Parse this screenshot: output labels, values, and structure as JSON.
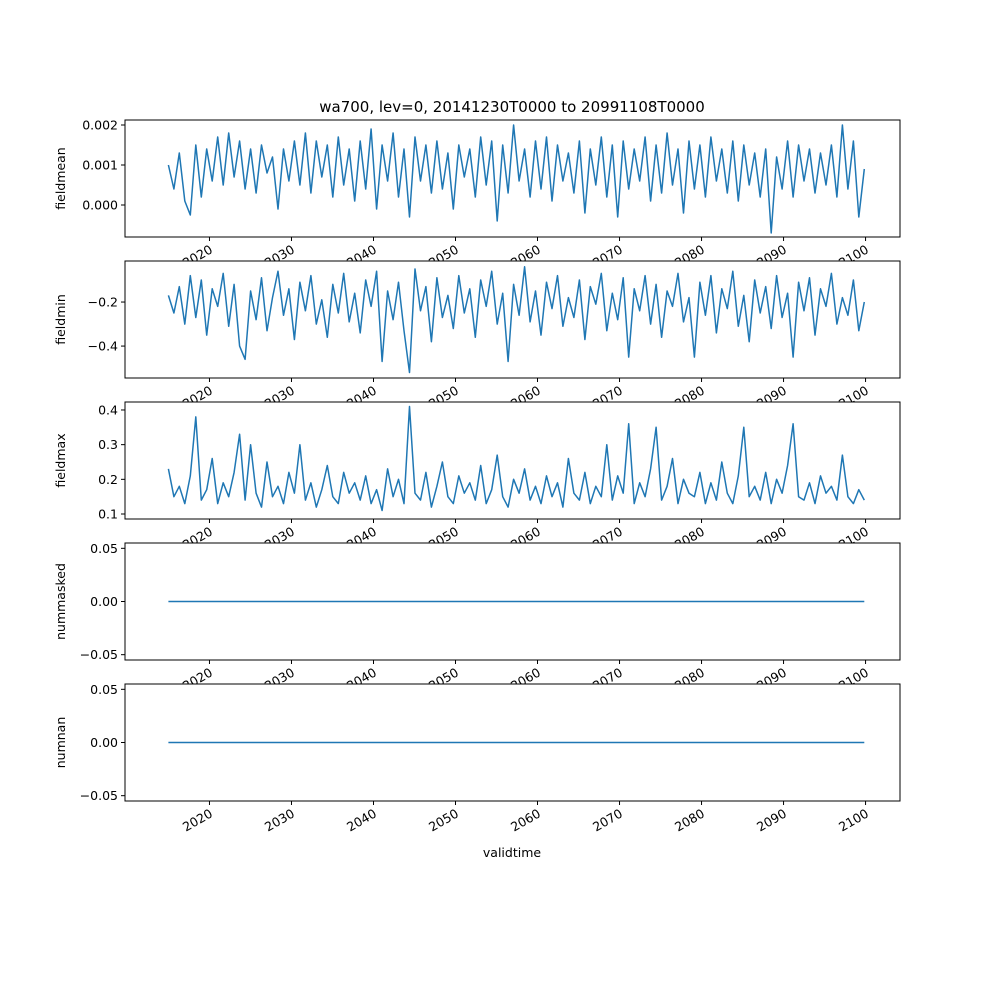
{
  "chart_data": {
    "type": "line",
    "title": "wa700, lev=0, 20141230T0000 to 20991108T0000",
    "xlabel": "validtime",
    "x_start": 2014.99,
    "x_end": 2099.85,
    "xlim": [
      2009.7,
      2104.2
    ],
    "x_ticks": [
      "2020",
      "2030",
      "2040",
      "2050",
      "2060",
      "2070",
      "2080",
      "2090",
      "2100"
    ],
    "x_tick_values": [
      2020,
      2030,
      2040,
      2050,
      2060,
      2070,
      2080,
      2090,
      2100
    ],
    "line_color": "#1f77b4",
    "panels": [
      {
        "ylabel": "fieldmean",
        "ylim": [
          -0.0008,
          0.002125
        ],
        "y_ticks": [
          "0.000",
          "0.001",
          "0.002"
        ],
        "y_tick_values": [
          0,
          0.001,
          0.002
        ],
        "values": [
          0.001,
          0.0004,
          0.0013,
          0.0001,
          -0.00025,
          0.0015,
          0.0002,
          0.0014,
          0.0006,
          0.0017,
          0.0005,
          0.0018,
          0.0007,
          0.0016,
          0.0004,
          0.0014,
          0.0003,
          0.0015,
          0.0008,
          0.0012,
          -0.0001,
          0.0014,
          0.0006,
          0.0016,
          0.0005,
          0.0018,
          0.0003,
          0.0016,
          0.0007,
          0.0015,
          0.0002,
          0.0017,
          0.0005,
          0.0014,
          0.0001,
          0.0016,
          0.0004,
          0.0019,
          -0.0001,
          0.0015,
          0.0006,
          0.0018,
          0.0002,
          0.0014,
          -0.0003,
          0.0017,
          0.0006,
          0.0015,
          0.0003,
          0.0016,
          0.0004,
          0.0013,
          -0.0001,
          0.0015,
          0.0007,
          0.0014,
          0.0002,
          0.0017,
          0.0005,
          0.0016,
          -0.0004,
          0.0015,
          0.0003,
          0.002,
          0.0006,
          0.0014,
          0.0002,
          0.0016,
          0.0004,
          0.0017,
          0.0001,
          0.0015,
          0.0006,
          0.0013,
          0.0003,
          0.0016,
          -0.0002,
          0.0014,
          0.0005,
          0.0017,
          0.0002,
          0.0015,
          -0.0003,
          0.0016,
          0.0004,
          0.0014,
          0.0006,
          0.0017,
          0.0001,
          0.0015,
          0.0003,
          0.0018,
          0.0005,
          0.0014,
          -0.0002,
          0.0016,
          0.0004,
          0.0015,
          0.0002,
          0.0017,
          0.0006,
          0.0014,
          0.0003,
          0.0016,
          0.0001,
          0.0015,
          0.0005,
          0.0013,
          0.0002,
          0.0014,
          -0.0007,
          0.0012,
          0.0004,
          0.0016,
          0.0002,
          0.0015,
          0.0006,
          0.0014,
          0.0003,
          0.0013,
          0.0005,
          0.0015,
          0.0002,
          0.002,
          0.0004,
          0.0016,
          -0.0003,
          0.0009
        ]
      },
      {
        "ylabel": "fieldmin",
        "ylim": [
          -0.545,
          -0.0136
        ],
        "y_ticks": [
          "−0.4",
          "−0.2"
        ],
        "y_tick_values": [
          -0.4,
          -0.2
        ],
        "values": [
          -0.17,
          -0.25,
          -0.13,
          -0.3,
          -0.08,
          -0.27,
          -0.1,
          -0.35,
          -0.14,
          -0.22,
          -0.07,
          -0.31,
          -0.12,
          -0.4,
          -0.46,
          -0.15,
          -0.28,
          -0.09,
          -0.33,
          -0.18,
          -0.06,
          -0.26,
          -0.14,
          -0.37,
          -0.11,
          -0.24,
          -0.08,
          -0.3,
          -0.19,
          -0.36,
          -0.12,
          -0.25,
          -0.07,
          -0.29,
          -0.16,
          -0.34,
          -0.1,
          -0.22,
          -0.06,
          -0.47,
          -0.15,
          -0.28,
          -0.11,
          -0.33,
          -0.52,
          -0.05,
          -0.24,
          -0.13,
          -0.38,
          -0.09,
          -0.27,
          -0.17,
          -0.32,
          -0.08,
          -0.25,
          -0.14,
          -0.36,
          -0.1,
          -0.22,
          -0.06,
          -0.3,
          -0.16,
          -0.47,
          -0.12,
          -0.26,
          -0.04,
          -0.29,
          -0.15,
          -0.35,
          -0.11,
          -0.23,
          -0.08,
          -0.31,
          -0.18,
          -0.27,
          -0.1,
          -0.37,
          -0.13,
          -0.21,
          -0.07,
          -0.33,
          -0.16,
          -0.28,
          -0.09,
          -0.45,
          -0.14,
          -0.24,
          -0.08,
          -0.3,
          -0.12,
          -0.36,
          -0.15,
          -0.22,
          -0.07,
          -0.29,
          -0.18,
          -0.45,
          -0.11,
          -0.26,
          -0.08,
          -0.34,
          -0.14,
          -0.23,
          -0.06,
          -0.31,
          -0.17,
          -0.38,
          -0.1,
          -0.25,
          -0.13,
          -0.32,
          -0.08,
          -0.27,
          -0.16,
          -0.45,
          -0.11,
          -0.24,
          -0.09,
          -0.35,
          -0.14,
          -0.22,
          -0.07,
          -0.3,
          -0.18,
          -0.26,
          -0.1,
          -0.33,
          -0.2
        ]
      },
      {
        "ylabel": "fieldmax",
        "ylim": [
          0.0856,
          0.423
        ],
        "y_ticks": [
          "0.1",
          "0.2",
          "0.3",
          "0.4"
        ],
        "y_tick_values": [
          0.1,
          0.2,
          0.3,
          0.4
        ],
        "values": [
          0.23,
          0.15,
          0.18,
          0.13,
          0.21,
          0.38,
          0.14,
          0.17,
          0.26,
          0.13,
          0.19,
          0.15,
          0.22,
          0.33,
          0.14,
          0.3,
          0.16,
          0.12,
          0.25,
          0.15,
          0.18,
          0.13,
          0.22,
          0.16,
          0.3,
          0.14,
          0.19,
          0.12,
          0.17,
          0.24,
          0.15,
          0.13,
          0.22,
          0.16,
          0.19,
          0.14,
          0.21,
          0.13,
          0.17,
          0.11,
          0.23,
          0.15,
          0.2,
          0.13,
          0.41,
          0.16,
          0.14,
          0.22,
          0.12,
          0.18,
          0.25,
          0.15,
          0.13,
          0.21,
          0.16,
          0.19,
          0.14,
          0.24,
          0.13,
          0.17,
          0.27,
          0.15,
          0.12,
          0.2,
          0.16,
          0.23,
          0.14,
          0.18,
          0.13,
          0.21,
          0.15,
          0.19,
          0.12,
          0.26,
          0.16,
          0.14,
          0.22,
          0.13,
          0.18,
          0.15,
          0.3,
          0.14,
          0.21,
          0.16,
          0.36,
          0.13,
          0.19,
          0.15,
          0.23,
          0.35,
          0.14,
          0.18,
          0.26,
          0.13,
          0.2,
          0.16,
          0.15,
          0.22,
          0.13,
          0.19,
          0.14,
          0.25,
          0.16,
          0.13,
          0.21,
          0.35,
          0.15,
          0.18,
          0.14,
          0.22,
          0.13,
          0.2,
          0.16,
          0.24,
          0.36,
          0.15,
          0.14,
          0.19,
          0.13,
          0.21,
          0.16,
          0.18,
          0.14,
          0.27,
          0.15,
          0.13,
          0.17,
          0.14
        ]
      },
      {
        "ylabel": "nummasked",
        "ylim": [
          -0.055,
          0.055
        ],
        "y_ticks": [
          "−0.05",
          "0.00",
          "0.05"
        ],
        "y_tick_values": [
          -0.05,
          0,
          0.05
        ],
        "values": [
          0,
          0
        ]
      },
      {
        "ylabel": "numnan",
        "ylim": [
          -0.055,
          0.055
        ],
        "y_ticks": [
          "−0.05",
          "0.00",
          "0.05"
        ],
        "y_tick_values": [
          -0.05,
          0,
          0.05
        ],
        "values": [
          0,
          0
        ]
      }
    ]
  }
}
